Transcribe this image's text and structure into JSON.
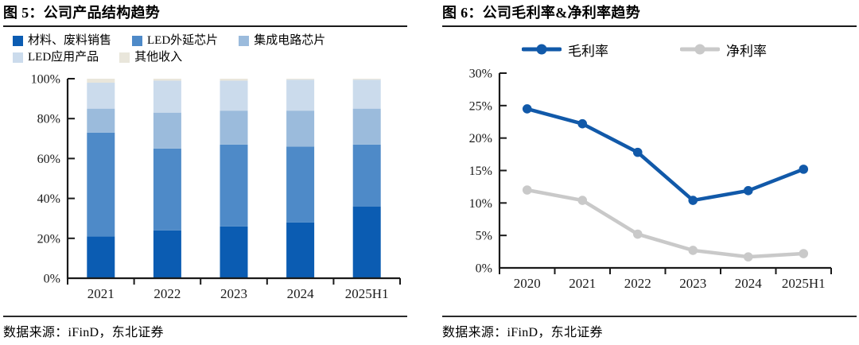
{
  "left_panel": {
    "title": "图 5：公司产品结构趋势",
    "source": "数据来源：iFinD，东北证券"
  },
  "right_panel": {
    "title": "图 6：公司毛利率&净利率趋势",
    "source": "数据来源：iFinD，东北证券"
  },
  "chart_data": [
    {
      "type": "bar",
      "variant": "stacked-100pct",
      "title": "公司产品结构趋势",
      "categories": [
        "2021",
        "2022",
        "2023",
        "2024",
        "2025H1"
      ],
      "series": [
        {
          "name": "材料、废料销售",
          "color": "#0B5CB2",
          "values": [
            21,
            24,
            26,
            28,
            36
          ]
        },
        {
          "name": "LED外延芯片",
          "color": "#4E8AC8",
          "values": [
            52,
            41,
            41,
            38,
            31
          ]
        },
        {
          "name": "集成电路芯片",
          "color": "#9BBBDC",
          "values": [
            12,
            18,
            17,
            18,
            18
          ]
        },
        {
          "name": "LED应用产品",
          "color": "#CBDBEC",
          "values": [
            13,
            16,
            15,
            15.5,
            14.5
          ]
        },
        {
          "name": "其他收入",
          "color": "#E9E6DB",
          "values": [
            2,
            1,
            1,
            0.5,
            0.5
          ]
        }
      ],
      "xlabel": "",
      "ylabel": "",
      "ylim": [
        0,
        100
      ],
      "yticks": [
        "0%",
        "20%",
        "40%",
        "60%",
        "80%",
        "100%"
      ],
      "grid": false,
      "legend_position": "top",
      "axis_color": "#1a1a1a"
    },
    {
      "type": "line",
      "title": "公司毛利率&净利率趋势",
      "categories": [
        "2020",
        "2021",
        "2022",
        "2023",
        "2024",
        "2025H1"
      ],
      "series": [
        {
          "name": "毛利率",
          "color": "#1159A9",
          "values": [
            24.5,
            22.2,
            17.8,
            10.4,
            11.9,
            15.2
          ]
        },
        {
          "name": "净利率",
          "color": "#C9C9C9",
          "values": [
            12.0,
            10.4,
            5.2,
            2.7,
            1.7,
            2.2
          ]
        }
      ],
      "xlabel": "",
      "ylabel": "",
      "ylim": [
        0,
        30
      ],
      "yticks": [
        "0%",
        "5%",
        "10%",
        "15%",
        "20%",
        "25%",
        "30%"
      ],
      "grid": false,
      "legend_position": "top",
      "axis_color": "#1a1a1a"
    }
  ]
}
